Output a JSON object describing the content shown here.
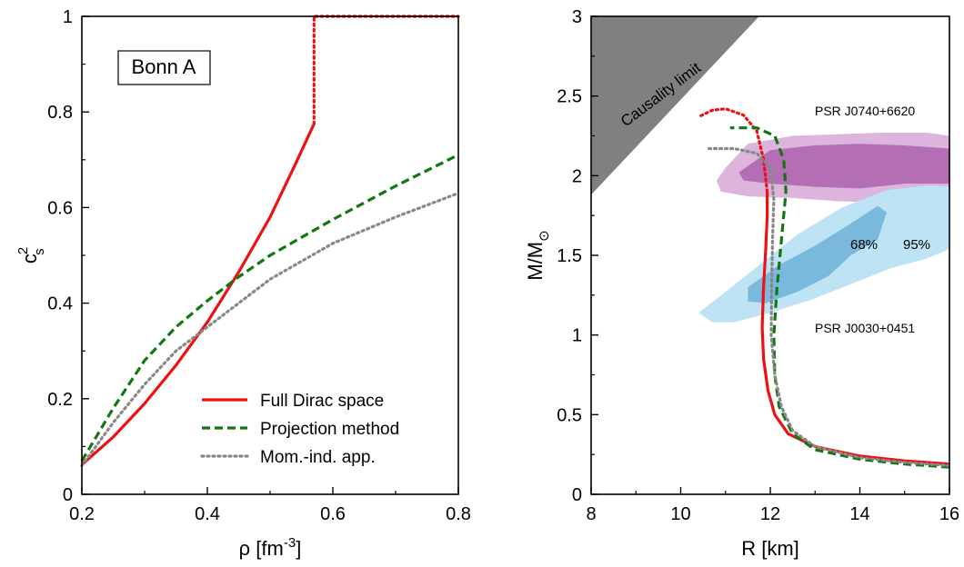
{
  "chart_data": [
    {
      "type": "line",
      "panel_label": "Bonn A",
      "xlabel": "ρ [fm",
      "xlabel_sup": "-3",
      "xlabel_end": "]",
      "ylabel": "c",
      "ylabel_sup": "2",
      "ylabel_sub": "s",
      "xlim": [
        0.2,
        0.8
      ],
      "ylim": [
        0,
        1
      ],
      "xticks": [
        0.2,
        0.4,
        0.6,
        0.8
      ],
      "xtick_labels": [
        "0.2",
        "0.4",
        "0.6",
        "0.8"
      ],
      "yticks": [
        0,
        0.2,
        0.4,
        0.6,
        0.8,
        1
      ],
      "ytick_labels": [
        "0",
        "0.2",
        "0.4",
        "0.6",
        "0.8",
        "1"
      ],
      "legend_position": "bottom-right",
      "series": [
        {
          "name": "Full Dirac space",
          "color": "#ee1111",
          "style": "solid",
          "points": [
            [
              0.2,
              0.062
            ],
            [
              0.25,
              0.12
            ],
            [
              0.3,
              0.19
            ],
            [
              0.35,
              0.27
            ],
            [
              0.4,
              0.36
            ],
            [
              0.45,
              0.465
            ],
            [
              0.5,
              0.58
            ],
            [
              0.54,
              0.69
            ],
            [
              0.57,
              0.775
            ]
          ],
          "causal_limit_points": [
            [
              0.57,
              0.775
            ],
            [
              0.57,
              1.0
            ],
            [
              0.8,
              1.0
            ]
          ]
        },
        {
          "name": "Projection method",
          "color": "#117711",
          "style": "dashed",
          "points": [
            [
              0.2,
              0.07
            ],
            [
              0.25,
              0.18
            ],
            [
              0.3,
              0.28
            ],
            [
              0.35,
              0.35
            ],
            [
              0.4,
              0.405
            ],
            [
              0.45,
              0.455
            ],
            [
              0.5,
              0.5
            ],
            [
              0.6,
              0.575
            ],
            [
              0.7,
              0.645
            ],
            [
              0.8,
              0.71
            ]
          ]
        },
        {
          "name": "Mom.-ind. app.",
          "color": "#888888",
          "style": "dotted",
          "points": [
            [
              0.2,
              0.06
            ],
            [
              0.25,
              0.15
            ],
            [
              0.3,
              0.23
            ],
            [
              0.35,
              0.3
            ],
            [
              0.4,
              0.35
            ],
            [
              0.45,
              0.4
            ],
            [
              0.5,
              0.45
            ],
            [
              0.6,
              0.525
            ],
            [
              0.7,
              0.58
            ],
            [
              0.8,
              0.63
            ]
          ]
        }
      ]
    },
    {
      "type": "line",
      "xlabel": "R [km]",
      "ylabel": "M/M",
      "ylabel_sub": "⊙",
      "xlim": [
        8,
        16
      ],
      "ylim": [
        0,
        3
      ],
      "xticks": [
        8,
        10,
        12,
        14,
        16
      ],
      "xtick_labels": [
        "8",
        "10",
        "12",
        "14",
        "16"
      ],
      "yticks": [
        0,
        0.5,
        1,
        1.5,
        2,
        2.5,
        3
      ],
      "ytick_labels": [
        "0",
        "0.5",
        "1",
        "1.5",
        "2",
        "2.5",
        "3"
      ],
      "causality_label": "Causality limit",
      "causality_color": "#808080",
      "regions": [
        {
          "name": "PSR J0740+6620",
          "label_color": "#882288",
          "color_95": "#dcb4dc",
          "color_68": "#b46eb4",
          "outer": [
            [
              11.0,
              2.05
            ],
            [
              11.5,
              2.2
            ],
            [
              12.5,
              2.25
            ],
            [
              13.5,
              2.26
            ],
            [
              14.5,
              2.27
            ],
            [
              15.5,
              2.27
            ],
            [
              16,
              2.25
            ],
            [
              16,
              1.72
            ],
            [
              15.5,
              1.78
            ],
            [
              14.5,
              1.83
            ],
            [
              13.5,
              1.84
            ],
            [
              12.5,
              1.86
            ],
            [
              11.5,
              1.87
            ],
            [
              10.9,
              1.9
            ],
            [
              10.8,
              1.97
            ]
          ],
          "inner": [
            [
              11.3,
              2.02
            ],
            [
              12,
              2.16
            ],
            [
              13,
              2.19
            ],
            [
              14,
              2.2
            ],
            [
              15,
              2.19
            ],
            [
              16,
              2.17
            ],
            [
              16,
              1.95
            ],
            [
              15,
              1.95
            ],
            [
              14,
              1.92
            ],
            [
              13,
              1.93
            ],
            [
              12,
              1.95
            ],
            [
              11.4,
              1.97
            ]
          ]
        },
        {
          "name": "PSR J0030+0451",
          "label_color": "#1a2ad6",
          "color_95": "#bde3f4",
          "color_68": "#7ab8dc",
          "label_68": "68%",
          "label_95": "95%",
          "outer": [
            [
              10.4,
              1.14
            ],
            [
              11,
              1.27
            ],
            [
              11.8,
              1.45
            ],
            [
              12.6,
              1.63
            ],
            [
              13.6,
              1.8
            ],
            [
              14.6,
              1.91
            ],
            [
              15.6,
              1.94
            ],
            [
              16,
              1.93
            ],
            [
              16,
              1.54
            ],
            [
              15.5,
              1.48
            ],
            [
              14.7,
              1.42
            ],
            [
              13.8,
              1.32
            ],
            [
              12.9,
              1.22
            ],
            [
              12,
              1.14
            ],
            [
              11.2,
              1.08
            ],
            [
              10.7,
              1.08
            ]
          ],
          "inner": [
            [
              11.5,
              1.3
            ],
            [
              12.2,
              1.44
            ],
            [
              13,
              1.56
            ],
            [
              13.8,
              1.7
            ],
            [
              14.4,
              1.81
            ],
            [
              14.6,
              1.77
            ],
            [
              14.4,
              1.6
            ],
            [
              13.8,
              1.5
            ],
            [
              13.3,
              1.37
            ],
            [
              12.6,
              1.27
            ],
            [
              11.9,
              1.2
            ],
            [
              11.5,
              1.21
            ]
          ]
        }
      ],
      "series": [
        {
          "name": "Full Dirac space",
          "color": "#ee1111",
          "style": "solid",
          "points": [
            [
              16,
              0.19
            ],
            [
              15,
              0.21
            ],
            [
              14,
              0.24
            ],
            [
              13,
              0.3
            ],
            [
              12.4,
              0.38
            ],
            [
              12.1,
              0.5
            ],
            [
              11.95,
              0.65
            ],
            [
              11.85,
              0.85
            ],
            [
              11.82,
              1.05
            ],
            [
              11.85,
              1.3
            ],
            [
              11.9,
              1.55
            ],
            [
              11.93,
              1.75
            ],
            [
              11.93,
              1.9
            ]
          ],
          "unstable_points": [
            [
              11.93,
              1.9
            ],
            [
              11.85,
              2.1
            ],
            [
              11.7,
              2.28
            ],
            [
              11.4,
              2.38
            ],
            [
              11.0,
              2.42
            ],
            [
              10.7,
              2.41
            ],
            [
              10.4,
              2.37
            ]
          ]
        },
        {
          "name": "Projection method",
          "color": "#117711",
          "style": "dashed",
          "points": [
            [
              16,
              0.17
            ],
            [
              15,
              0.19
            ],
            [
              14,
              0.22
            ],
            [
              13,
              0.28
            ],
            [
              12.5,
              0.38
            ],
            [
              12.2,
              0.55
            ],
            [
              12.1,
              0.75
            ],
            [
              12.08,
              1.0
            ],
            [
              12.15,
              1.3
            ],
            [
              12.25,
              1.6
            ],
            [
              12.35,
              1.9
            ],
            [
              12.3,
              2.1
            ],
            [
              12.1,
              2.25
            ],
            [
              11.7,
              2.3
            ],
            [
              11.1,
              2.3
            ]
          ]
        },
        {
          "name": "Mom.-ind. app.",
          "color": "#888888",
          "style": "dotted",
          "points": [
            [
              16,
              0.18
            ],
            [
              15,
              0.2
            ],
            [
              14,
              0.23
            ],
            [
              13,
              0.3
            ],
            [
              12.5,
              0.4
            ],
            [
              12.25,
              0.55
            ],
            [
              12.1,
              0.75
            ],
            [
              12.02,
              1.0
            ],
            [
              12.03,
              1.3
            ],
            [
              12.05,
              1.6
            ],
            [
              12.08,
              1.85
            ],
            [
              12.0,
              2.05
            ],
            [
              11.7,
              2.14
            ],
            [
              11.2,
              2.17
            ],
            [
              10.6,
              2.17
            ]
          ]
        }
      ]
    }
  ]
}
